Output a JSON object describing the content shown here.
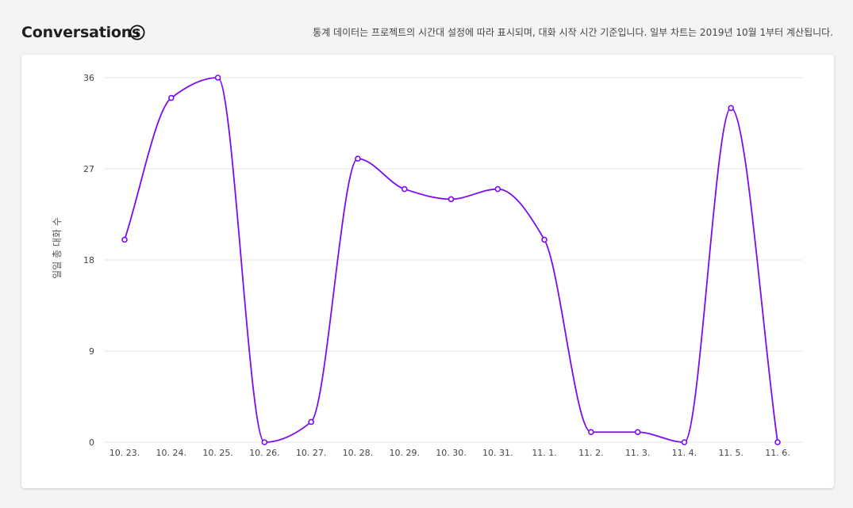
{
  "header": {
    "title": "Conversations",
    "note": "통계 데이터는 프로젝트의 시간대 설정에 따라 표시되며, 대화 시작 시간 기준입니다. 일부 차트는 2019년 10월 1부터 계산됩니다."
  },
  "icons": {
    "info": "info-circle-icon"
  },
  "colors": {
    "line": "#7b0cf0",
    "grid": "#e6e6e6",
    "background": "#f4f4f4",
    "card": "#ffffff"
  },
  "chart_data": {
    "type": "line",
    "title": "",
    "xlabel": "",
    "ylabel": "일일 총 대화 수",
    "categories": [
      "10. 23.",
      "10. 24.",
      "10. 25.",
      "10. 26.",
      "10. 27.",
      "10. 28.",
      "10. 29.",
      "10. 30.",
      "10. 31.",
      "11. 1.",
      "11. 2.",
      "11. 3.",
      "11. 4.",
      "11. 5.",
      "11. 6."
    ],
    "series": [
      {
        "values": [
          20,
          34,
          36,
          0,
          2,
          28,
          25,
          24,
          25,
          20,
          1,
          1,
          0,
          33,
          0
        ]
      }
    ],
    "ylim": [
      0,
      36
    ],
    "yticks": [
      0,
      9,
      18,
      27,
      36
    ],
    "smooth": true,
    "markers": "hollow-circle",
    "grid": "horizontal",
    "legend": "none"
  }
}
